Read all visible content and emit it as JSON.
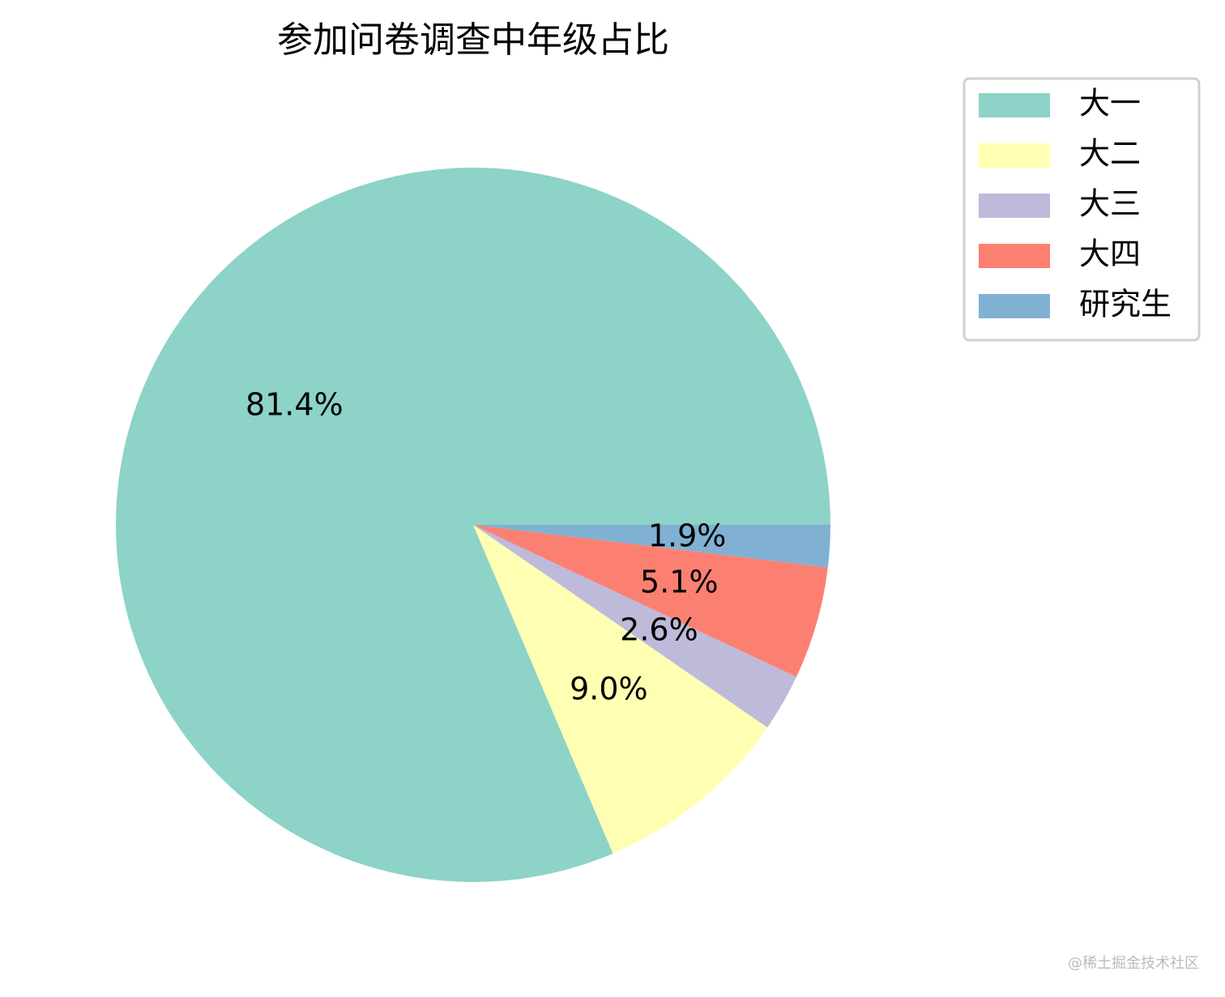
{
  "chart_data": {
    "type": "pie",
    "title": "参加问卷调查中年级占比",
    "categories": [
      "大一",
      "大二",
      "大三",
      "大四",
      "研究生"
    ],
    "values": [
      81.4,
      9.0,
      2.6,
      5.1,
      1.9
    ],
    "value_labels": [
      "81.4%",
      "9.0%",
      "2.6%",
      "5.1%",
      "1.9%"
    ],
    "colors": [
      "#8dd3c7",
      "#ffffb3",
      "#bebada",
      "#fb8072",
      "#80b1d3"
    ],
    "legend": "upper right",
    "watermark": "@稀土掘金技术社区"
  }
}
